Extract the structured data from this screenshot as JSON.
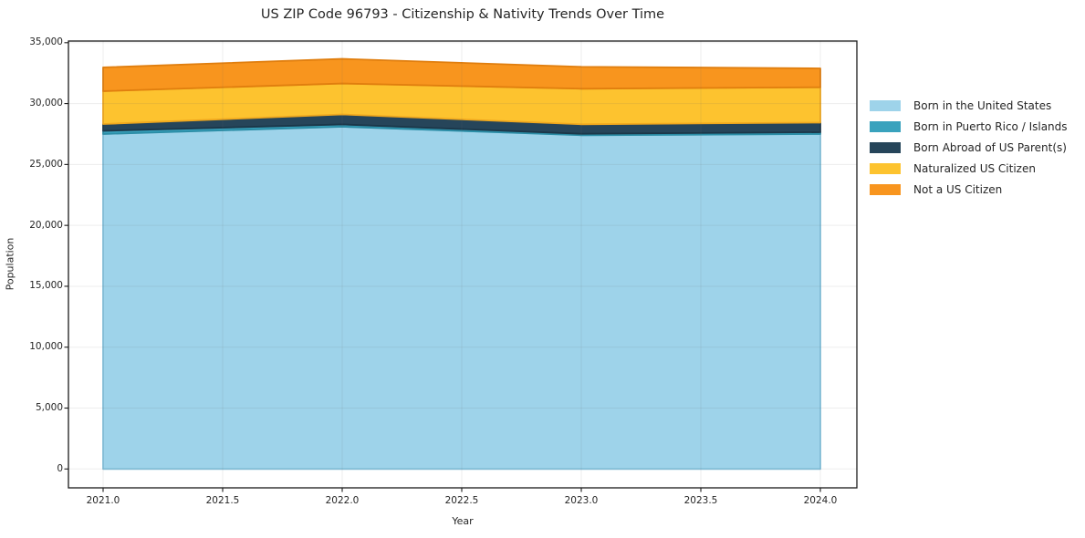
{
  "title": "US ZIP Code 96793 - Citizenship & Nativity Trends Over Time",
  "chart_data": {
    "type": "area",
    "stacked": true,
    "title": "US ZIP Code 96793 - Citizenship & Nativity Trends Over Time",
    "xlabel": "Year",
    "ylabel": "Population",
    "x": [
      2021,
      2022,
      2023,
      2024
    ],
    "series": [
      {
        "name": "Born in the United States",
        "values": [
          27500,
          28100,
          27400,
          27500
        ],
        "color": "#9ed3ea",
        "edge": "#84c2dd"
      },
      {
        "name": "Born in Puerto Rico / Islands",
        "values": [
          260,
          190,
          120,
          150
        ],
        "color": "#39a2bd",
        "edge": "#2b8da6"
      },
      {
        "name": "Born Abroad of US Parent(s)",
        "values": [
          560,
          820,
          780,
          790
        ],
        "color": "#26455a",
        "edge": "#1c3749"
      },
      {
        "name": "Naturalized US Citizen",
        "values": [
          2700,
          2540,
          2920,
          2900
        ],
        "color": "#fdc32f",
        "edge": "#f0a81e"
      },
      {
        "name": "Not a US Citizen",
        "values": [
          1950,
          2020,
          1800,
          1550
        ],
        "color": "#f8951e",
        "edge": "#e07e0e"
      }
    ],
    "ylim": [
      0,
      35000
    ],
    "xlim": [
      2020.85,
      2024.15
    ],
    "ytick_values": [
      0,
      5000,
      10000,
      15000,
      20000,
      25000,
      30000,
      35000
    ],
    "ytick_labels": [
      "0",
      "5,000",
      "10,000",
      "15,000",
      "20,000",
      "25,000",
      "30,000",
      "35,000"
    ],
    "xtick_values": [
      2021.0,
      2021.5,
      2022.0,
      2022.5,
      2023.0,
      2023.5,
      2024.0
    ],
    "xtick_labels": [
      "2021.0",
      "2021.5",
      "2022.0",
      "2022.5",
      "2023.0",
      "2023.5",
      "2024.0"
    ],
    "grid": true,
    "grid_color": "#e7e7e7",
    "spine_color": "#1a1a1a",
    "legend_position": "center right"
  }
}
